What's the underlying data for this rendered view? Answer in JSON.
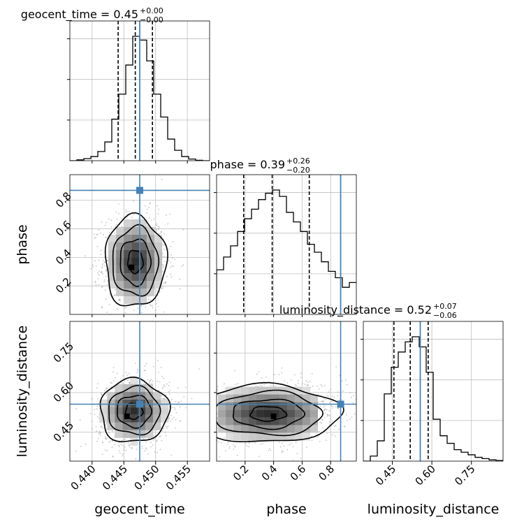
{
  "chart_data": {
    "type": "corner",
    "colors": {
      "truth": "#4682b4",
      "hist": "#000000",
      "points": "#7f7f7f",
      "grid": "#bfbfbf"
    },
    "parameters": [
      {
        "name": "geocent_time",
        "title_main": "geocent_time = 0.45",
        "title_up": "+0.00",
        "title_down": "−0.00",
        "truth": 0.4475,
        "quantiles": [
          0.4441,
          0.4468,
          0.4495
        ],
        "range": [
          0.4365,
          0.4585
        ],
        "ticks": [
          0.44,
          0.445,
          0.45,
          0.455
        ],
        "tick_labels": [
          "0.440",
          "0.445",
          "0.450",
          "0.455"
        ]
      },
      {
        "name": "phase",
        "title_main": "phase = 0.39",
        "title_up": "+0.26",
        "title_down": "−0.20",
        "truth": 0.87,
        "quantiles": [
          0.19,
          0.39,
          0.65
        ],
        "range": [
          0.0,
          0.98
        ],
        "ticks": [
          0.2,
          0.4,
          0.6,
          0.8
        ],
        "tick_labels": [
          "0.2",
          "0.4",
          "0.6",
          "0.8"
        ]
      },
      {
        "name": "luminosity_distance",
        "title_main": "luminosity_distance = 0.52",
        "title_up": "+0.07",
        "title_down": "−0.06",
        "truth": 0.556,
        "quantiles": [
          0.456,
          0.518,
          0.586
        ],
        "range": [
          0.34,
          0.87
        ],
        "ticks": [
          0.45,
          0.6,
          0.75
        ],
        "tick_labels": [
          "0.45",
          "0.60",
          "0.75"
        ]
      }
    ],
    "histograms": [
      {
        "param": "geocent_time",
        "edges": [
          0.4365,
          0.4376,
          0.4387,
          0.4398,
          0.4409,
          0.442,
          0.4431,
          0.4442,
          0.4453,
          0.4464,
          0.4475,
          0.4486,
          0.4497,
          0.4508,
          0.4519,
          0.453,
          0.4541,
          0.4552,
          0.4563,
          0.4574,
          0.4585
        ],
        "counts": [
          0,
          2,
          5,
          10,
          22,
          45,
          100,
          160,
          230,
          299,
          290,
          240,
          160,
          105,
          52,
          25,
          10,
          4,
          1,
          0
        ]
      },
      {
        "param": "phase",
        "edges": [
          0.0,
          0.049,
          0.098,
          0.147,
          0.196,
          0.245,
          0.294,
          0.343,
          0.392,
          0.441,
          0.49,
          0.539,
          0.588,
          0.637,
          0.686,
          0.735,
          0.784,
          0.833,
          0.882,
          0.931,
          0.98
        ],
        "counts": [
          280,
          360,
          430,
          520,
          600,
          660,
          720,
          760,
          780,
          740,
          640,
          580,
          520,
          440,
          390,
          330,
          270,
          230,
          170,
          200
        ]
      },
      {
        "param": "luminosity_distance",
        "edges": [
          0.34,
          0.3665,
          0.393,
          0.4195,
          0.446,
          0.4725,
          0.499,
          0.5255,
          0.552,
          0.5785,
          0.605,
          0.6315,
          0.658,
          0.6845,
          0.711,
          0.7375,
          0.764,
          0.7905,
          0.817,
          0.8435,
          0.87
        ],
        "counts": [
          0,
          40,
          160,
          530,
          740,
          860,
          940,
          980,
          900,
          700,
          330,
          200,
          140,
          90,
          70,
          50,
          30,
          20,
          10,
          5
        ]
      }
    ],
    "pairs": [
      {
        "x": "geocent_time",
        "y": "phase",
        "mean": [
          0.4468,
          0.37
        ],
        "sd": [
          0.0024,
          0.16
        ],
        "corr": 0.0,
        "peak": [
          0.4462,
          0.33
        ]
      },
      {
        "x": "geocent_time",
        "y": "luminosity_distance",
        "mean": [
          0.4466,
          0.53
        ],
        "sd": [
          0.0027,
          0.06
        ],
        "corr": 0.1,
        "peak": [
          0.4455,
          0.51
        ]
      },
      {
        "x": "phase",
        "y": "luminosity_distance",
        "mean": [
          0.36,
          0.52
        ],
        "sd": [
          0.25,
          0.055
        ],
        "corr": 0.15,
        "peak": [
          0.4,
          0.51
        ]
      }
    ]
  }
}
